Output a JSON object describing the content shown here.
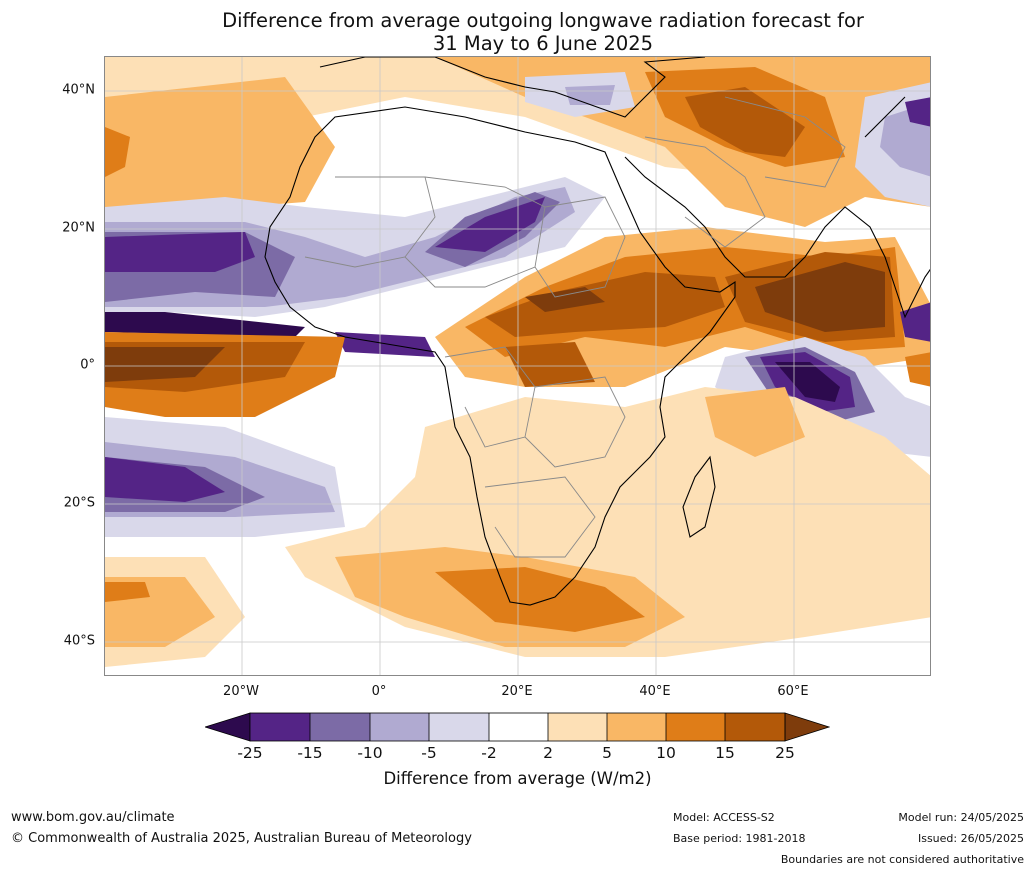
{
  "title": {
    "line1": "Difference from average outgoing longwave radiation forecast for",
    "line2": "31 May to 6 June 2025"
  },
  "map": {
    "lat_labels": [
      "40°N",
      "20°N",
      "0°",
      "20°S",
      "40°S"
    ],
    "lon_labels": [
      "20°W",
      "0°",
      "20°E",
      "40°E",
      "60°E"
    ],
    "colors": {
      "neg_extreme": "#2d0a4e",
      "neg_25_15": "#542486",
      "neg_15_10": "#7c6ba6",
      "neg_10_5": "#b0aad1",
      "neg_5_2": "#d9d8ea",
      "neutral": "#ffffff",
      "pos_2_5": "#fde0b6",
      "pos_5_10": "#f9b765",
      "pos_10_15": "#df7d18",
      "pos_15_25": "#b35909",
      "pos_extreme": "#7e3c0c",
      "coast": "#000000",
      "borders": "#8a8a8a",
      "grid": "#c8c8c8"
    }
  },
  "colorbar": {
    "ticks": [
      "-25",
      "-15",
      "-10",
      "-5",
      "-2",
      "2",
      "5",
      "10",
      "15",
      "25"
    ],
    "title": "Difference from average (W/m2)"
  },
  "footer": {
    "website": "www.bom.gov.au/climate",
    "copyright": "© Commonwealth of Australia 2025, Australian Bureau of Meteorology",
    "model": "Model: ACCESS-S2",
    "base_period": "Base period: 1981-2018",
    "model_run": "Model run: 24/05/2025",
    "issued": "Issued: 26/05/2025",
    "disclaimer": "Boundaries are not considered authoritative"
  }
}
